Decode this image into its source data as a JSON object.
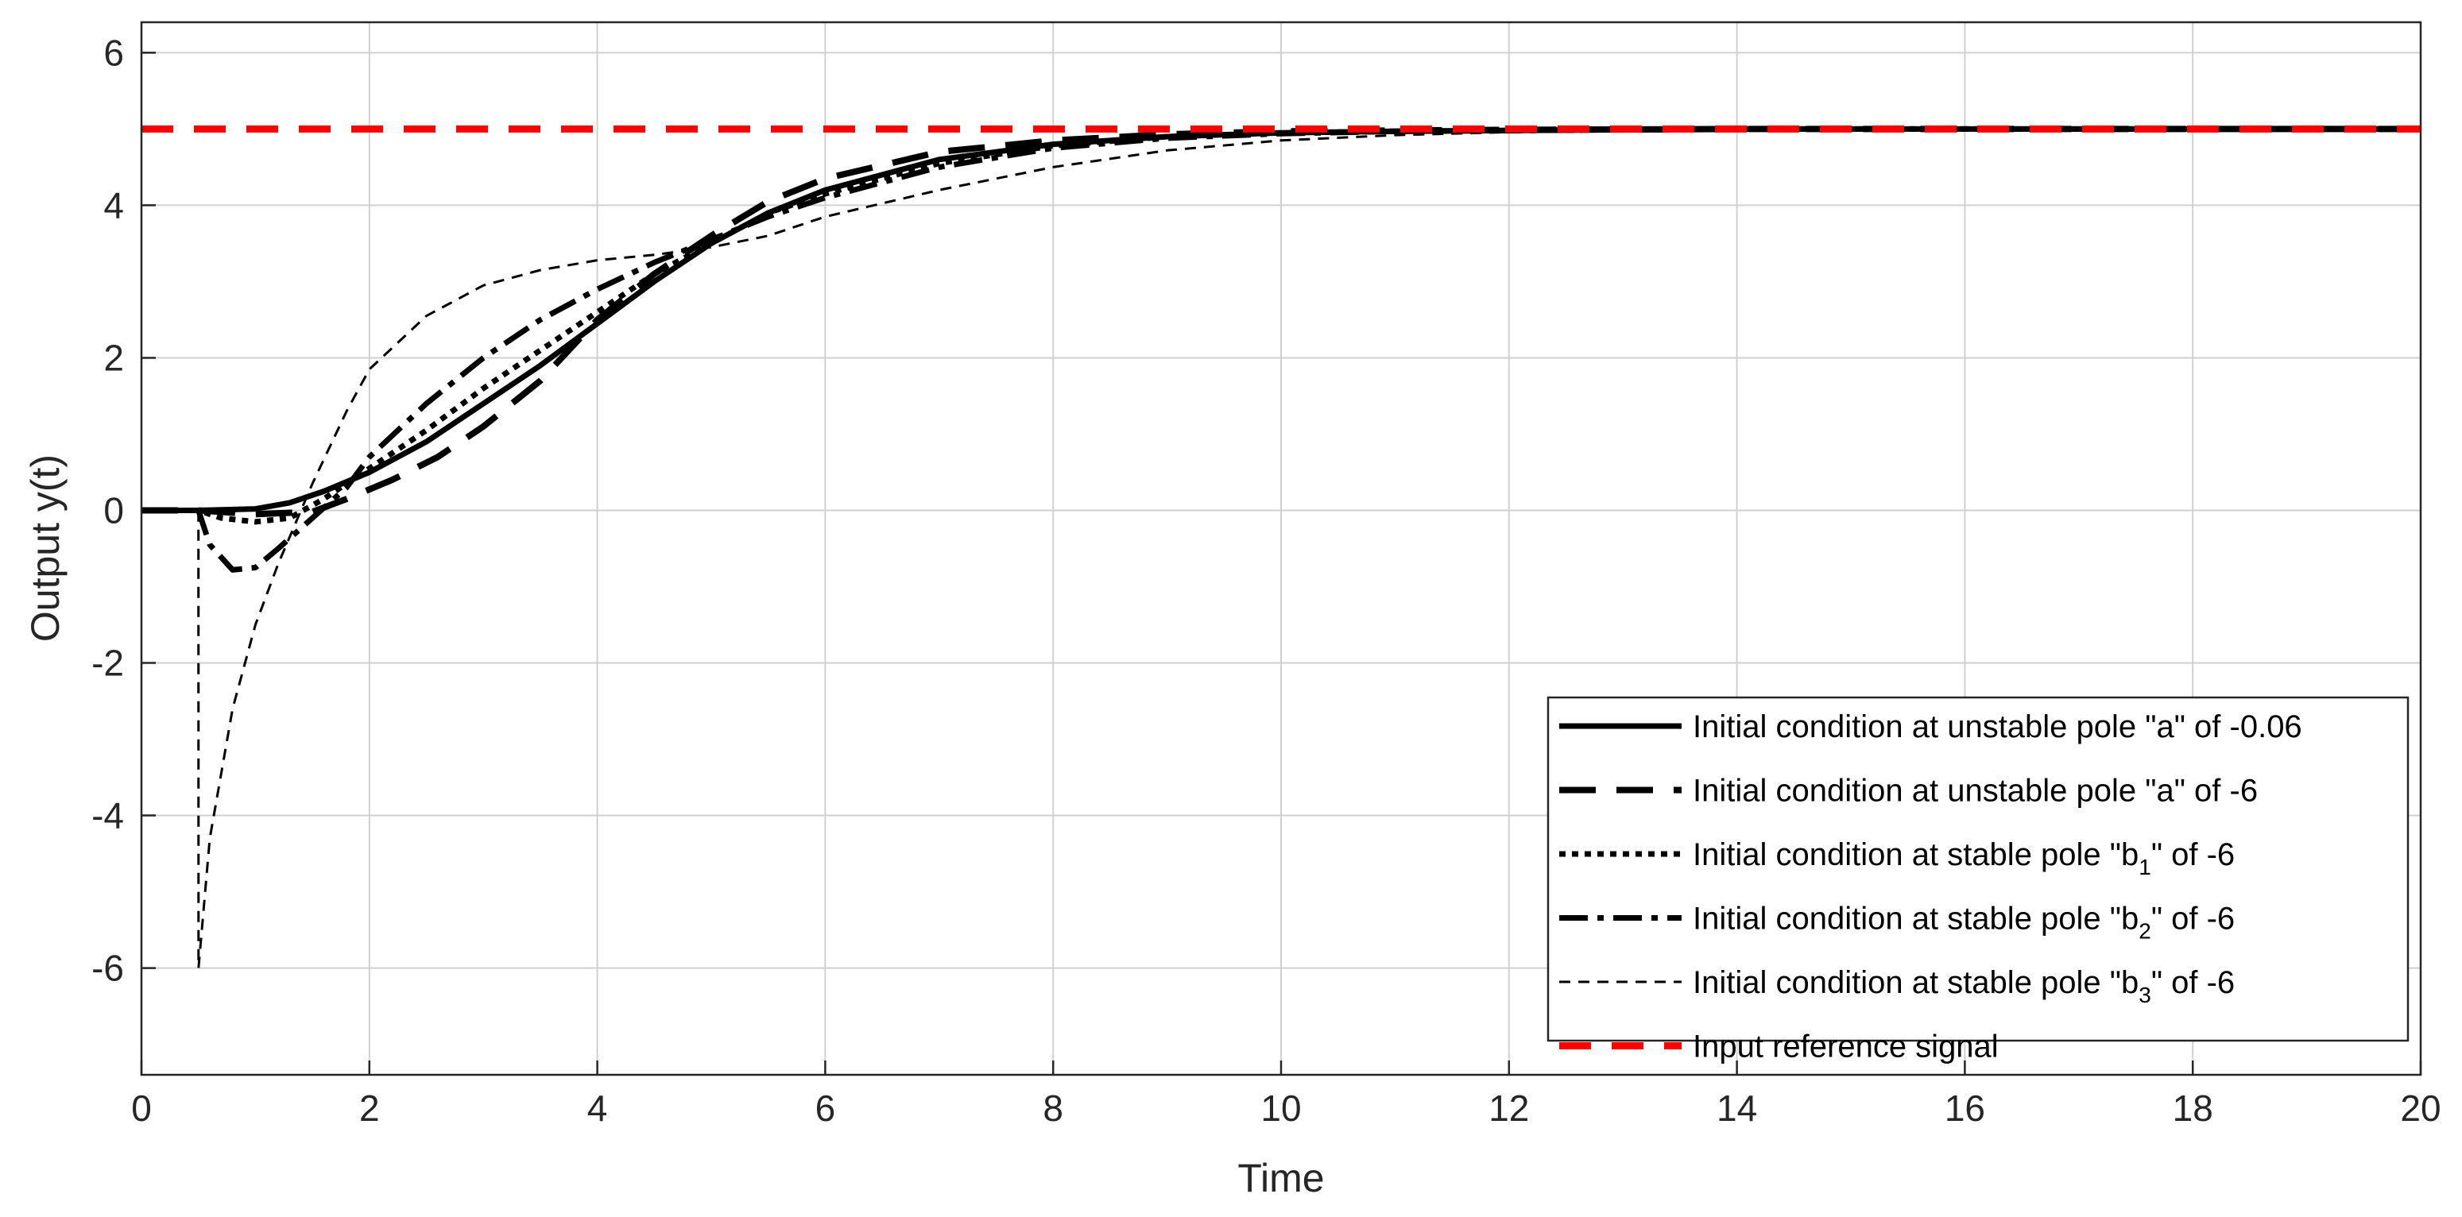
{
  "chart_data": {
    "type": "line",
    "title": "",
    "xlabel": "Time",
    "ylabel": "Output y(t)",
    "xlim": [
      0,
      20
    ],
    "ylim": [
      -7.4,
      6.4
    ],
    "xticks": [
      "0",
      "2",
      "4",
      "6",
      "8",
      "10",
      "12",
      "14",
      "16",
      "18",
      "20"
    ],
    "yticks": [
      "6",
      "4",
      "2",
      "0",
      "-2",
      "-4",
      "-6"
    ],
    "grid": true,
    "legend_position": "bottom-right",
    "series": [
      {
        "name_parts": [
          "Initial condition at unstable pole \"a\" of -0.06"
        ],
        "dash": "solid",
        "color": "#000000",
        "width": 7,
        "x": [
          0,
          0.5,
          1.0,
          1.3,
          1.6,
          2.0,
          2.5,
          3.0,
          3.5,
          4.0,
          4.5,
          5.0,
          5.5,
          6.0,
          7.0,
          8.0,
          9.0,
          10.0,
          11.0,
          12.0,
          14.0,
          16.0,
          18.0,
          20.0
        ],
        "y": [
          0,
          0,
          0.02,
          0.1,
          0.25,
          0.5,
          0.9,
          1.4,
          1.9,
          2.45,
          3.0,
          3.5,
          3.9,
          4.2,
          4.6,
          4.8,
          4.9,
          4.95,
          4.97,
          4.98,
          5.0,
          5.0,
          5.0,
          5.0
        ]
      },
      {
        "name_parts": [
          "Initial condition at unstable pole \"a\" of -6"
        ],
        "dash": "46,26",
        "color": "#000000",
        "width": 8,
        "x": [
          0,
          0.5,
          1.0,
          1.5,
          1.8,
          2.2,
          2.6,
          3.0,
          3.5,
          4.0,
          4.5,
          5.0,
          5.5,
          6.0,
          7.0,
          8.0,
          9.0,
          10.0,
          11.0,
          12.0,
          14.0,
          16.0,
          18.0,
          20.0
        ],
        "y": [
          0,
          0,
          -0.05,
          -0.02,
          0.15,
          0.4,
          0.7,
          1.1,
          1.7,
          2.5,
          3.1,
          3.6,
          4.05,
          4.35,
          4.7,
          4.85,
          4.93,
          4.97,
          4.98,
          4.99,
          5.0,
          5.0,
          5.0,
          5.0
        ]
      },
      {
        "name_parts": [
          "Initial condition at stable pole \"b",
          "1",
          "\" of -6"
        ],
        "dash": "8,8",
        "color": "#000000",
        "width": 7,
        "x": [
          0,
          0.5,
          0.7,
          1.0,
          1.3,
          1.6,
          2.0,
          2.5,
          3.0,
          3.5,
          4.0,
          4.5,
          5.0,
          5.5,
          6.0,
          7.0,
          8.0,
          9.0,
          10.0,
          11.0,
          12.0,
          14.0,
          16.0,
          18.0,
          20.0
        ],
        "y": [
          0,
          0,
          -0.1,
          -0.15,
          -0.1,
          0.15,
          0.55,
          1.05,
          1.6,
          2.1,
          2.6,
          3.1,
          3.5,
          3.9,
          4.15,
          4.55,
          4.78,
          4.9,
          4.95,
          4.97,
          4.98,
          5.0,
          5.0,
          5.0,
          5.0
        ]
      },
      {
        "name_parts": [
          "Initial condition at stable pole \"b",
          "2",
          "\" of -6"
        ],
        "dash": "36,12,8,12",
        "color": "#000000",
        "width": 7,
        "x": [
          0,
          0.5,
          0.6,
          0.8,
          1.0,
          1.2,
          1.5,
          1.8,
          2.0,
          2.5,
          3.0,
          3.5,
          4.0,
          4.5,
          5.0,
          5.5,
          6.0,
          7.0,
          8.0,
          9.0,
          10.0,
          11.0,
          12.0,
          14.0,
          16.0,
          18.0,
          20.0
        ],
        "y": [
          0,
          0,
          -0.45,
          -0.78,
          -0.75,
          -0.5,
          -0.1,
          0.3,
          0.7,
          1.4,
          2.0,
          2.5,
          2.9,
          3.25,
          3.55,
          3.85,
          4.1,
          4.5,
          4.75,
          4.88,
          4.94,
          4.97,
          4.98,
          5.0,
          5.0,
          5.0,
          5.0
        ]
      },
      {
        "name_parts": [
          "Initial condition at stable pole \"b",
          "3",
          "\" of -6"
        ],
        "dash": "14,10",
        "color": "#000000",
        "width": 3,
        "x": [
          0,
          0.5,
          0.501,
          0.6,
          0.8,
          1.0,
          1.2,
          1.5,
          1.8,
          2.0,
          2.5,
          3.0,
          3.5,
          4.0,
          4.5,
          5.0,
          5.5,
          6.0,
          7.0,
          8.0,
          9.0,
          10.0,
          11.0,
          12.0,
          14.0,
          16.0,
          18.0,
          20.0
        ],
        "y": [
          0,
          0,
          -6.0,
          -4.3,
          -2.6,
          -1.5,
          -0.7,
          0.35,
          1.3,
          1.85,
          2.55,
          2.95,
          3.15,
          3.28,
          3.35,
          3.45,
          3.6,
          3.85,
          4.2,
          4.5,
          4.72,
          4.85,
          4.92,
          4.96,
          4.99,
          5.0,
          5.0,
          5.0
        ]
      },
      {
        "name_parts": [
          "Input reference signal"
        ],
        "dash": "40,26",
        "color": "#ff0000",
        "width": 9,
        "x": [
          0,
          20
        ],
        "y": [
          5,
          5
        ]
      }
    ]
  }
}
